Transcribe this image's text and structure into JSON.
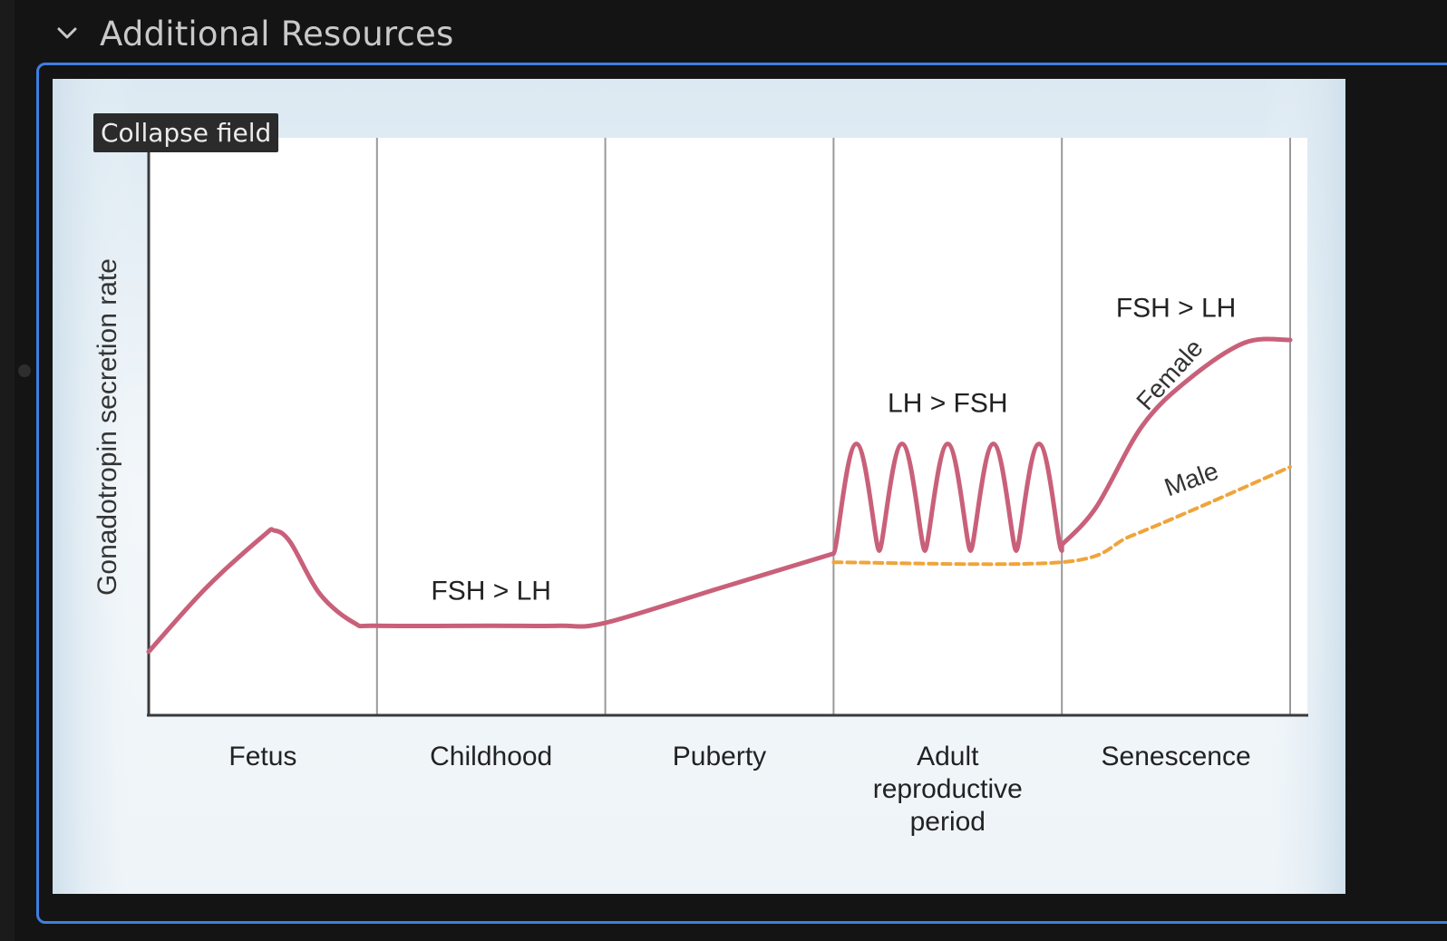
{
  "section": {
    "title": "Additional Resources",
    "chevron_icon": "chevron-down-icon"
  },
  "tooltip": {
    "label": "Collapse field"
  },
  "colors": {
    "accent_border": "#3f7fe0",
    "female_curve": "#c9607a",
    "male_curve": "#f0a43a"
  },
  "chart_data": {
    "type": "line",
    "title": "",
    "ylabel": "Gonadotropin secretion rate",
    "xlabel": "",
    "categories": [
      "Fetus",
      "Childhood",
      "Puberty",
      "Adult reproductive period",
      "Senescence"
    ],
    "category_lines": [
      [
        "Fetus"
      ],
      [
        "Childhood"
      ],
      [
        "Puberty"
      ],
      [
        "Adult",
        "reproductive",
        "period"
      ],
      [
        "Senescence"
      ]
    ],
    "x_range": [
      0,
      5
    ],
    "y_range": [
      0,
      10
    ],
    "grid": "vertical dividers between stages",
    "series": [
      {
        "name": "Female",
        "style": "solid",
        "color": "#c9607a",
        "points": [
          [
            0,
            1.1
          ],
          [
            0.25,
            2.2
          ],
          [
            0.5,
            3.1
          ],
          [
            0.55,
            3.2
          ],
          [
            0.62,
            3.0
          ],
          [
            0.75,
            2.1
          ],
          [
            0.9,
            1.6
          ],
          [
            1.0,
            1.55
          ],
          [
            1.5,
            1.55
          ],
          [
            1.8,
            1.55
          ],
          [
            2.0,
            1.6
          ],
          [
            2.5,
            2.2
          ],
          [
            3.0,
            2.8
          ]
        ],
        "pulses": {
          "x_start": 3.0,
          "x_end": 4.0,
          "count": 5,
          "peak": 4.7,
          "trough": 2.85
        },
        "tail": [
          [
            4.0,
            2.95
          ],
          [
            4.15,
            3.6
          ],
          [
            4.35,
            5.0
          ],
          [
            4.55,
            5.8
          ],
          [
            4.8,
            6.45
          ],
          [
            5.0,
            6.5
          ]
        ]
      },
      {
        "name": "Male",
        "style": "dashed",
        "color": "#f0a43a",
        "points": [
          [
            3.0,
            2.65
          ],
          [
            4.0,
            2.65
          ],
          [
            4.3,
            3.1
          ],
          [
            4.6,
            3.6
          ],
          [
            5.0,
            4.3
          ]
        ]
      }
    ],
    "annotations": [
      {
        "text": "FSH > LH",
        "x": 1.5,
        "y": 2.0
      },
      {
        "text": "LH > FSH",
        "x": 3.5,
        "y": 5.25
      },
      {
        "text": "FSH > LH",
        "x": 4.5,
        "y": 6.9
      }
    ]
  }
}
